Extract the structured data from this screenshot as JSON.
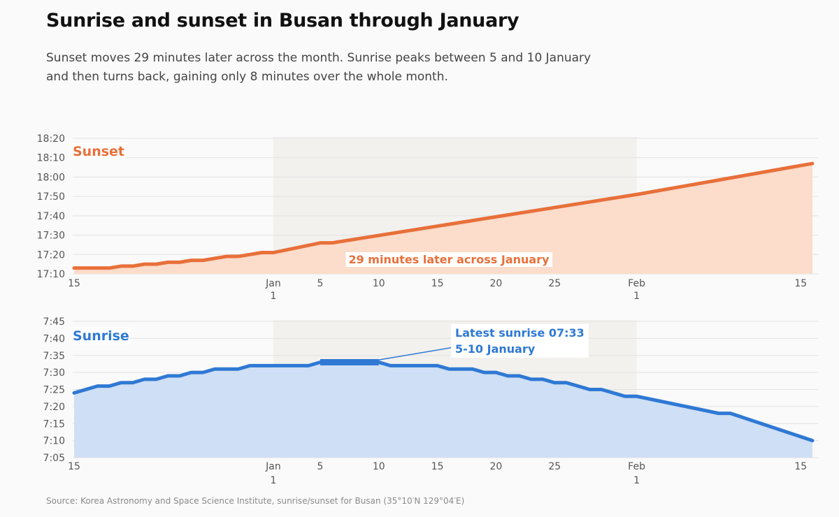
{
  "title": "Sunrise and sunset in Busan through January",
  "subtitle": "Sunset moves 29 minutes later across the month. Sunrise peaks between 5 and 10 January and then turns back, gaining only 8 minutes over the whole month.",
  "source": "Source: Korea Astronomy and Space Science Institute, sunrise/sunset for Busan (35°10′N 129°04′E)",
  "colors": {
    "sunset": "#e8703a",
    "sunset_fill": "#fcdccb",
    "sunrise": "#2f79d4",
    "sunrise_fill": "#cfdff5",
    "highlight_band": "#f2f1ee"
  },
  "chart_data": [
    {
      "type": "area",
      "series_label": "Sunset",
      "annotation": "29 minutes later across January",
      "x_unit": "days relative to 1 January",
      "xlim": [
        -17,
        46
      ],
      "highlight": [
        0,
        31
      ],
      "x_ticks": [
        {
          "x": -17,
          "label": "15",
          "sub": ""
        },
        {
          "x": 0,
          "label": "Jan",
          "sub": "1"
        },
        {
          "x": 4,
          "label": "5",
          "sub": ""
        },
        {
          "x": 9,
          "label": "10",
          "sub": ""
        },
        {
          "x": 14,
          "label": "15",
          "sub": ""
        },
        {
          "x": 19,
          "label": "20",
          "sub": ""
        },
        {
          "x": 24,
          "label": "25",
          "sub": ""
        },
        {
          "x": 31,
          "label": "Feb",
          "sub": "1"
        },
        {
          "x": 45,
          "label": "15",
          "sub": ""
        }
      ],
      "y_ticks": [
        "17:10",
        "17:20",
        "17:30",
        "17:40",
        "17:50",
        "18:00",
        "18:10",
        "18:20"
      ],
      "ylim": [
        "17:10",
        "18:20"
      ],
      "points": [
        [
          -17,
          "17:13"
        ],
        [
          -15,
          "17:13"
        ],
        [
          -14,
          "17:13"
        ],
        [
          -13,
          "17:14"
        ],
        [
          -12,
          "17:14"
        ],
        [
          -11,
          "17:15"
        ],
        [
          -10,
          "17:15"
        ],
        [
          -9,
          "17:16"
        ],
        [
          -8,
          "17:16"
        ],
        [
          -7,
          "17:17"
        ],
        [
          -6,
          "17:17"
        ],
        [
          -5,
          "17:18"
        ],
        [
          -4,
          "17:19"
        ],
        [
          -3,
          "17:19"
        ],
        [
          -2,
          "17:20"
        ],
        [
          -1,
          "17:21"
        ],
        [
          0,
          "17:21"
        ],
        [
          4,
          "17:26"
        ],
        [
          5,
          "17:26"
        ],
        [
          31,
          "17:51"
        ],
        [
          46,
          "18:07"
        ]
      ]
    },
    {
      "type": "area",
      "series_label": "Sunrise",
      "annotation_lines": [
        "Latest sunrise 07:33",
        "5-10 January"
      ],
      "x_unit": "days relative to 1 January",
      "xlim": [
        -17,
        46
      ],
      "highlight": [
        0,
        31
      ],
      "peak": [
        4,
        9
      ],
      "x_ticks": [
        {
          "x": -17,
          "label": "15",
          "sub": ""
        },
        {
          "x": 0,
          "label": "Jan",
          "sub": "1"
        },
        {
          "x": 4,
          "label": "5",
          "sub": ""
        },
        {
          "x": 9,
          "label": "10",
          "sub": ""
        },
        {
          "x": 14,
          "label": "15",
          "sub": ""
        },
        {
          "x": 19,
          "label": "20",
          "sub": ""
        },
        {
          "x": 24,
          "label": "25",
          "sub": ""
        },
        {
          "x": 31,
          "label": "Feb",
          "sub": "1"
        },
        {
          "x": 45,
          "label": "15",
          "sub": ""
        }
      ],
      "y_ticks": [
        "7:05",
        "7:10",
        "7:15",
        "7:20",
        "7:25",
        "7:30",
        "7:35",
        "7:40",
        "7:45"
      ],
      "ylim": [
        "7:05",
        "7:45"
      ],
      "points": [
        [
          -17,
          "7:24"
        ],
        [
          -15,
          "7:26"
        ],
        [
          -14,
          "7:26"
        ],
        [
          -13,
          "7:27"
        ],
        [
          -12,
          "7:27"
        ],
        [
          -11,
          "7:28"
        ],
        [
          -10,
          "7:28"
        ],
        [
          -9,
          "7:29"
        ],
        [
          -8,
          "7:29"
        ],
        [
          -7,
          "7:30"
        ],
        [
          -6,
          "7:30"
        ],
        [
          -5,
          "7:31"
        ],
        [
          -3,
          "7:31"
        ],
        [
          -2,
          "7:32"
        ],
        [
          3,
          "7:32"
        ],
        [
          4,
          "7:33"
        ],
        [
          9,
          "7:33"
        ],
        [
          10,
          "7:32"
        ],
        [
          14,
          "7:32"
        ],
        [
          15,
          "7:31"
        ],
        [
          17,
          "7:31"
        ],
        [
          18,
          "7:30"
        ],
        [
          19,
          "7:30"
        ],
        [
          20,
          "7:29"
        ],
        [
          21,
          "7:29"
        ],
        [
          22,
          "7:28"
        ],
        [
          23,
          "7:28"
        ],
        [
          24,
          "7:27"
        ],
        [
          25,
          "7:27"
        ],
        [
          26,
          "7:26"
        ],
        [
          27,
          "7:25"
        ],
        [
          28,
          "7:25"
        ],
        [
          30,
          "7:23"
        ],
        [
          31,
          "7:23"
        ],
        [
          38,
          "7:18"
        ],
        [
          39,
          "7:18"
        ],
        [
          46,
          "7:10"
        ]
      ]
    }
  ]
}
